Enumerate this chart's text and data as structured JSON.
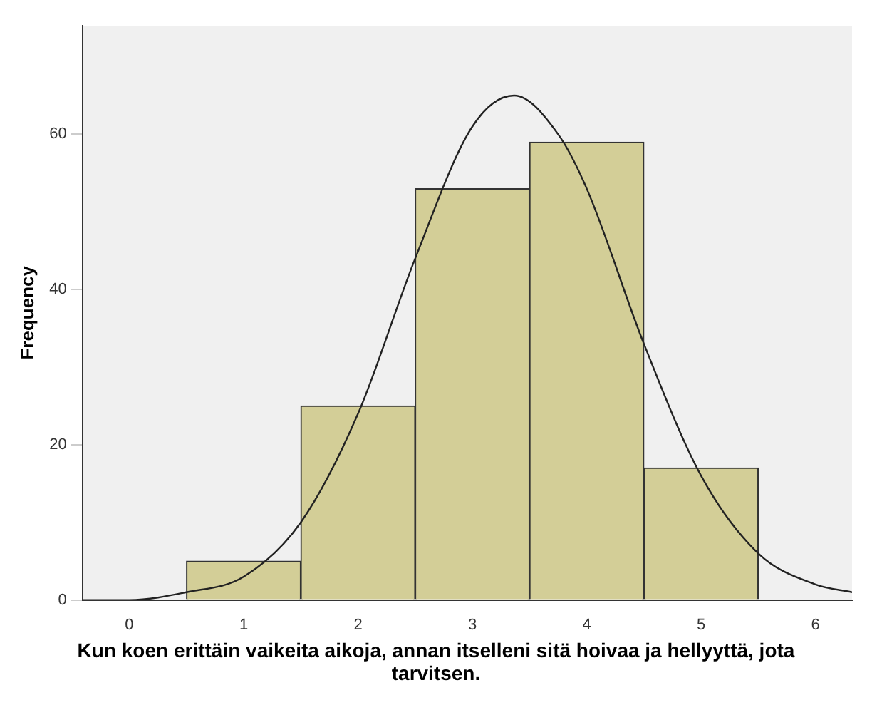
{
  "chart_data": {
    "type": "histogram",
    "xlabel": "Kun koen erittäin vaikeita aikoja, annan itselleni sitä hoivaa ja hellyyttä, jota tarvitsen.",
    "ylabel": "Frequency",
    "bins": [
      0.5,
      1.5,
      2.5,
      3.5,
      4.5,
      5.5
    ],
    "values": [
      5,
      25,
      53,
      59,
      17
    ],
    "color": "#d3ce97",
    "series": [
      {
        "type": "line",
        "color": "#222222",
        "x": [
          -0.41,
          0,
          0.5,
          1,
          1.5,
          2,
          2.5,
          3,
          3.365,
          3.75,
          4,
          4.5,
          5,
          5.5,
          6,
          6.32
        ],
        "values": [
          0,
          0,
          1,
          3,
          10,
          24,
          44,
          61,
          65,
          60,
          53,
          33,
          16,
          6,
          2,
          1
        ]
      }
    ],
    "marker": "none",
    "xlim": [
      -0.41,
      6.32
    ],
    "xticks": [
      0,
      1,
      2,
      3,
      4,
      5,
      6
    ],
    "ylim": [
      0,
      74
    ],
    "yticks": [
      0,
      20,
      40,
      60
    ],
    "grid": false,
    "legend": false
  }
}
